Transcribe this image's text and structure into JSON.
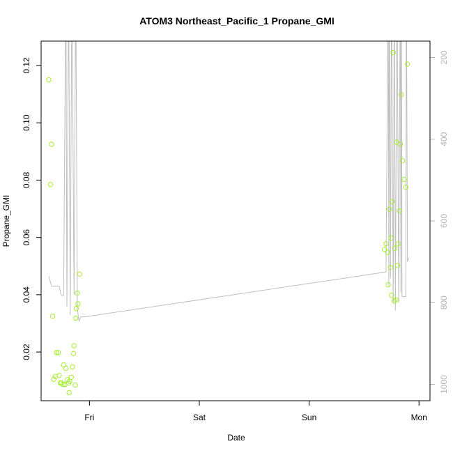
{
  "chart_data": {
    "type": "scatter",
    "title": "ATOM3 Northeast_Pacific_1 Propane_GMI",
    "xlabel": "Date",
    "ylabel": "Propane_GMI",
    "x_unit": "days",
    "x_ticks": [
      {
        "label": "Fri",
        "value": 1.0
      },
      {
        "label": "Sat",
        "value": 2.0
      },
      {
        "label": "Sun",
        "value": 3.0
      },
      {
        "label": "Mon",
        "value": 4.0
      }
    ],
    "xlim": [
      0.56,
      4.1
    ],
    "ylim": [
      0.003,
      0.1285
    ],
    "y_ticks": [
      0.02,
      0.04,
      0.06,
      0.08,
      0.1,
      0.12
    ],
    "y2_ticks": [
      200,
      400,
      600,
      800,
      1000
    ],
    "y2lim": [
      1040,
      160
    ],
    "grid": false,
    "colors": {
      "points": "#a6ee2f",
      "pressure_line": "#bebebe",
      "right_axis": "#b3b3b3"
    },
    "series": [
      {
        "role": "points",
        "points": [
          [
            0.63,
            0.115
          ],
          [
            0.645,
            0.0785
          ],
          [
            0.655,
            0.0925
          ],
          [
            0.665,
            0.0325
          ],
          [
            0.675,
            0.0105
          ],
          [
            0.69,
            0.0115
          ],
          [
            0.7,
            0.0198
          ],
          [
            0.715,
            0.0198
          ],
          [
            0.725,
            0.0118
          ],
          [
            0.735,
            0.0092
          ],
          [
            0.745,
            0.0092
          ],
          [
            0.76,
            0.0087
          ],
          [
            0.765,
            0.0155
          ],
          [
            0.775,
            0.0087
          ],
          [
            0.785,
            0.0143
          ],
          [
            0.8,
            0.0103
          ],
          [
            0.81,
            0.0092
          ],
          [
            0.815,
            0.0058
          ],
          [
            0.82,
            0.0098
          ],
          [
            0.835,
            0.0112
          ],
          [
            0.845,
            0.0148
          ],
          [
            0.855,
            0.0195
          ],
          [
            0.86,
            0.0222
          ],
          [
            0.87,
            0.0085
          ],
          [
            0.875,
            0.0318
          ],
          [
            0.88,
            0.0352
          ],
          [
            0.89,
            0.0405
          ],
          [
            0.895,
            0.0368
          ],
          [
            0.91,
            0.0472
          ],
          [
            3.685,
            0.0558
          ],
          [
            3.7,
            0.0578
          ],
          [
            3.715,
            0.0548
          ],
          [
            3.72,
            0.0435
          ],
          [
            3.73,
            0.0698
          ],
          [
            3.74,
            0.0495
          ],
          [
            3.745,
            0.0598
          ],
          [
            3.75,
            0.0398
          ],
          [
            3.755,
            0.0725
          ],
          [
            3.765,
            0.1245
          ],
          [
            3.775,
            0.0378
          ],
          [
            3.78,
            0.0562
          ],
          [
            3.79,
            0.0382
          ],
          [
            3.795,
            0.0932
          ],
          [
            3.805,
            0.0502
          ],
          [
            3.81,
            0.0578
          ],
          [
            3.82,
            0.0692
          ],
          [
            3.83,
            0.0925
          ],
          [
            3.84,
            0.1098
          ],
          [
            3.85,
            0.0868
          ],
          [
            3.865,
            0.0802
          ],
          [
            3.88,
            0.0775
          ],
          [
            3.895,
            0.1205
          ]
        ]
      },
      {
        "role": "pressure",
        "points": [
          [
            0.63,
            735
          ],
          [
            0.655,
            760
          ],
          [
            0.7,
            760
          ],
          [
            0.725,
            760
          ],
          [
            0.74,
            780
          ],
          [
            0.75,
            782
          ],
          [
            0.765,
            782
          ],
          [
            0.785,
            0
          ],
          [
            0.795,
            810
          ],
          [
            0.81,
            0
          ],
          [
            0.825,
            830
          ],
          [
            0.84,
            0
          ],
          [
            0.86,
            780
          ],
          [
            0.875,
            0
          ],
          [
            0.89,
            815
          ],
          [
            0.905,
            845
          ],
          [
            0.92,
            835
          ],
          [
            0.95,
            835
          ],
          [
            3.7,
            725
          ],
          [
            3.72,
            0
          ],
          [
            3.725,
            760
          ],
          [
            3.73,
            0
          ],
          [
            3.74,
            740
          ],
          [
            3.75,
            0
          ],
          [
            3.765,
            800
          ],
          [
            3.775,
            0
          ],
          [
            3.785,
            820
          ],
          [
            3.8,
            0
          ],
          [
            3.815,
            800
          ],
          [
            3.83,
            0
          ],
          [
            3.835,
            775
          ],
          [
            3.84,
            0
          ],
          [
            3.845,
            785
          ],
          [
            3.855,
            785
          ],
          [
            3.88,
            785
          ],
          [
            3.885,
            0
          ],
          [
            3.895,
            700
          ],
          [
            3.905,
            690
          ]
        ]
      }
    ]
  }
}
